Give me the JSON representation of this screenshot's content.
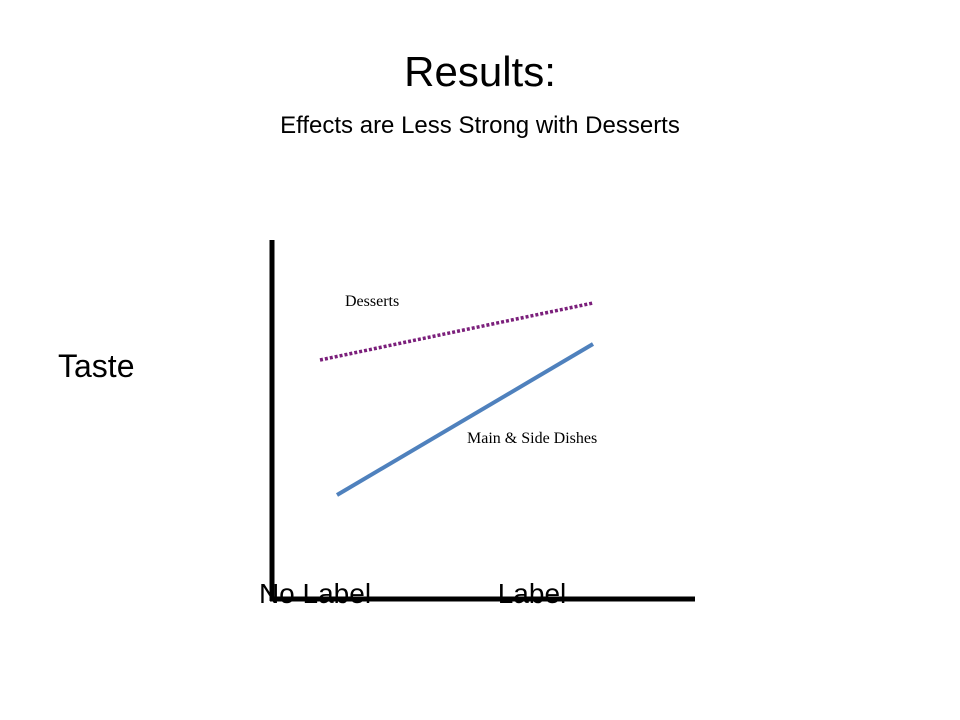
{
  "slide": {
    "title": "Results:",
    "subtitle": "Effects are Less Strong with Desserts",
    "y_label": "Taste",
    "x_labels": [
      "No Label",
      "Label"
    ],
    "line_labels": [
      "Desserts",
      "Main & Side Dishes"
    ]
  }
}
